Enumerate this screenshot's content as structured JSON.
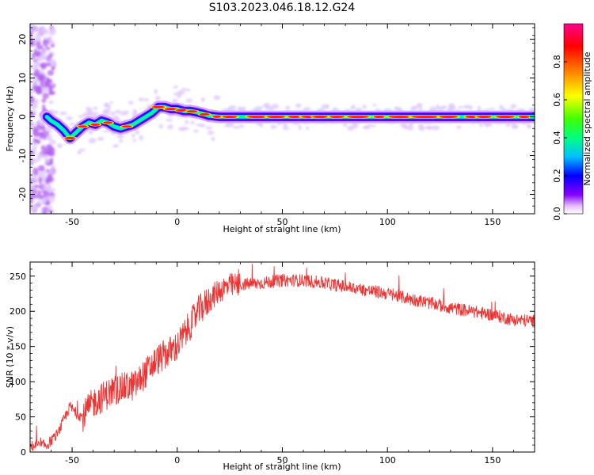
{
  "title": "S103.2023.046.18.12.G24",
  "chart_data": [
    {
      "type": "heatmap",
      "xlabel": "Height of straight line (km)",
      "ylabel": "Frequency (Hz)",
      "xlim": [
        -70,
        170
      ],
      "ylim": [
        -25,
        24
      ],
      "xticks": [
        -50,
        0,
        50,
        100,
        150
      ],
      "yticks": [
        -20,
        -10,
        0,
        10,
        20
      ],
      "colorbar": {
        "label": "Normalized spectral amplitude",
        "range": [
          0,
          1
        ],
        "ticks": [
          0.0,
          0.2,
          0.4,
          0.6,
          0.8
        ],
        "colors": [
          "#ffffff",
          "#e8c0ff",
          "#8800ff",
          "#0000ff",
          "#00c0ff",
          "#00ff80",
          "#40ff00",
          "#ffff00",
          "#ff8000",
          "#ff0000",
          "#ff0090"
        ]
      },
      "ridge": {
        "x": [
          -62,
          -60,
          -57,
          -54,
          -51,
          -48,
          -45,
          -42,
          -39,
          -36,
          -33,
          -30,
          -27,
          -24,
          -21,
          -18,
          -15,
          -12,
          -9,
          -6,
          -3,
          0,
          3,
          6,
          9,
          12,
          15,
          20,
          30,
          40,
          50,
          60,
          70,
          80,
          90,
          100,
          110,
          120,
          130,
          140,
          150,
          160,
          170
        ],
        "y": [
          0,
          -1,
          -2,
          -3.5,
          -5.5,
          -4,
          -2.5,
          -1.5,
          -2,
          -1,
          -1.5,
          -2.5,
          -3,
          -2.5,
          -2,
          -1,
          0,
          1,
          2.5,
          2.5,
          2,
          2,
          1.5,
          1.5,
          1.2,
          0.8,
          0.3,
          0,
          0,
          0,
          0,
          0,
          0,
          0,
          0,
          0,
          0,
          0,
          0,
          0,
          0,
          0,
          0
        ]
      }
    },
    {
      "type": "line",
      "xlabel": "Height of straight line (km)",
      "ylabel": "SNR (10 * v/v)",
      "xlim": [
        -70,
        170
      ],
      "ylim": [
        0,
        270
      ],
      "xticks": [
        -50,
        0,
        50,
        100,
        150
      ],
      "yticks": [
        0,
        50,
        100,
        150,
        200,
        250
      ],
      "color": "#ee3333",
      "trend": {
        "x": [
          -70,
          -62,
          -57,
          -54,
          -51,
          -48,
          -45,
          -40,
          -30,
          -20,
          -10,
          0,
          5,
          10,
          15,
          20,
          25,
          30,
          40,
          50,
          60,
          70,
          80,
          90,
          100,
          110,
          120,
          130,
          140,
          150,
          160,
          170
        ],
        "y": [
          8,
          10,
          25,
          45,
          65,
          55,
          50,
          70,
          88,
          95,
          130,
          150,
          175,
          200,
          215,
          230,
          236,
          238,
          240,
          244,
          244,
          240,
          235,
          230,
          225,
          218,
          212,
          205,
          200,
          195,
          188,
          186
        ]
      }
    }
  ]
}
